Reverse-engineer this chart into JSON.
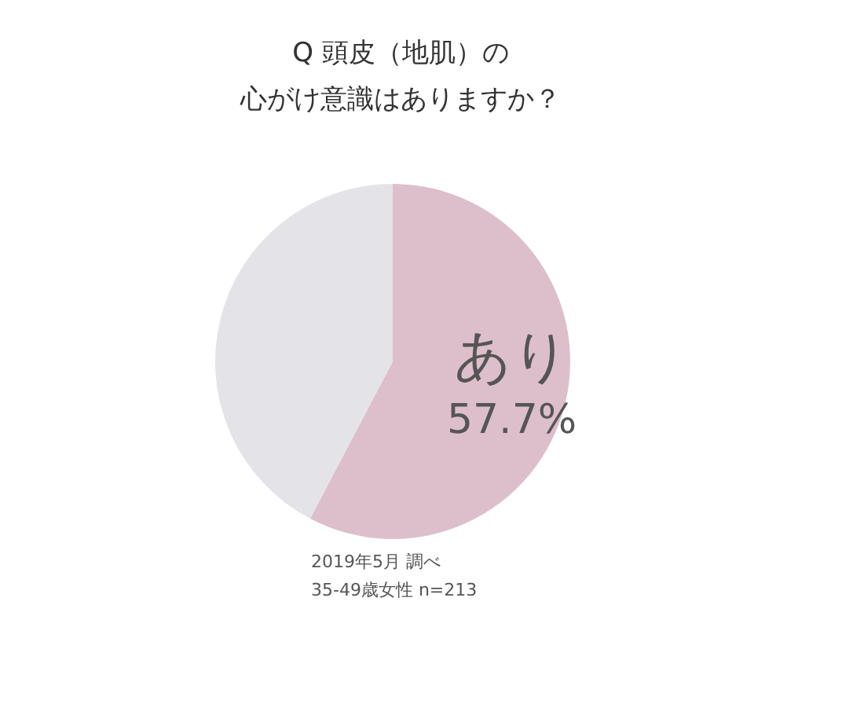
{
  "chart_data": {
    "type": "pie",
    "title": "Q 頭皮（地肌）の",
    "subtitle": "心がけ意識はありますか？",
    "categories": [
      "あり",
      null
    ],
    "values": [
      57.7,
      42.3
    ],
    "colors": [
      "#ddbfcb",
      "#e4e3e7"
    ],
    "value_labels": [
      "57.7%",
      null
    ],
    "annotations": [
      "2019年5月 調べ",
      "35-49歳女性 n=213"
    ],
    "legend": false
  }
}
